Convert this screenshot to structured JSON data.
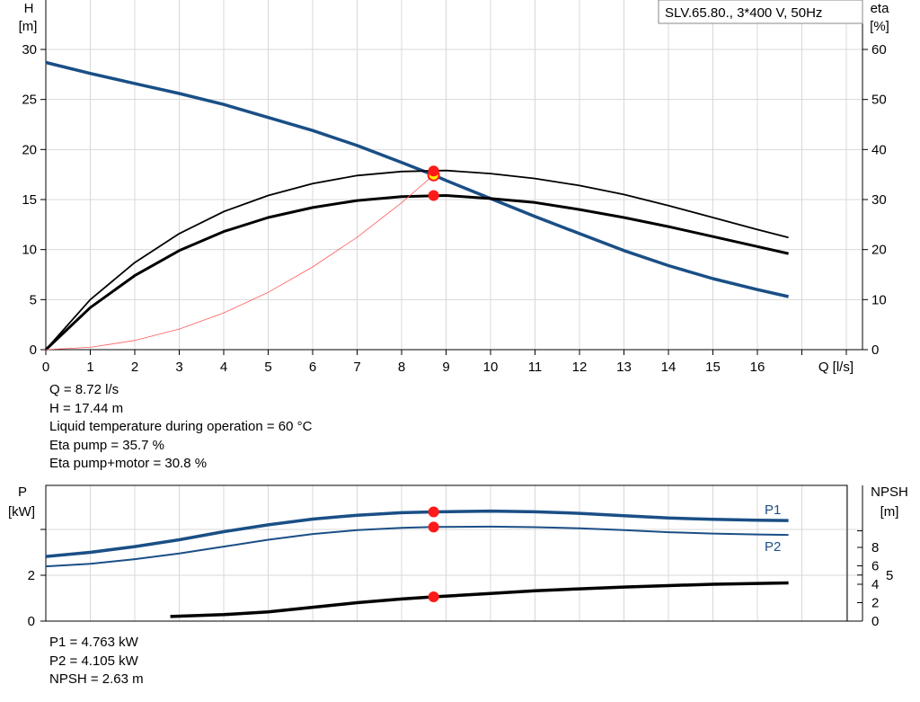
{
  "legend_text": "SLV.65.80., 3*400 V, 50Hz",
  "info_top": [
    "Q = 8.72 l/s",
    "H = 17.44 m",
    "Liquid temperature during operation = 60 °C",
    "Eta pump = 35.7 %",
    "Eta pump+motor = 30.8 %"
  ],
  "info_bottom": [
    "P1 = 4.763 kW",
    "P2 = 4.105 kW",
    "NPSH = 2.63 m"
  ],
  "colors": {
    "head": "#1a4f86",
    "power": "#1a4f86",
    "efficiency": "#000000",
    "npsh": "#000000",
    "system": "#ff5a5a",
    "point": "#ff1a1a",
    "duty_point": "#ffee00",
    "grid": "#d8d8d8"
  },
  "chart_data": [
    {
      "type": "line",
      "xlabel": "Q [l/s]",
      "ylabel_left": "H",
      "ylabel_left_unit": "[m]",
      "ylabel_right": "eta",
      "ylabel_right_unit": "[%]",
      "xlim": [
        0,
        18
      ],
      "ylim_left": [
        0,
        30
      ],
      "ylim_right": [
        0,
        60
      ],
      "grid": true,
      "x_ticks": [
        "0",
        "1",
        "2",
        "3",
        "4",
        "5",
        "6",
        "7",
        "8",
        "9",
        "10",
        "11",
        "12",
        "13",
        "14",
        "15",
        "16"
      ],
      "y_left_ticks": [
        "0",
        "5",
        "10",
        "15",
        "20",
        "25",
        "30"
      ],
      "y_right_ticks": [
        "0",
        "10",
        "20",
        "30",
        "40",
        "50",
        "60"
      ],
      "series": [
        {
          "role": "head",
          "axis": "left",
          "x": [
            0,
            1,
            2,
            3,
            4,
            5,
            6,
            7,
            8,
            8.72,
            9,
            10,
            11,
            12,
            13,
            14,
            15,
            16,
            16.7
          ],
          "y": [
            28.7,
            27.6,
            26.6,
            25.6,
            24.5,
            23.2,
            21.9,
            20.4,
            18.7,
            17.44,
            16.9,
            15.1,
            13.3,
            11.6,
            9.9,
            8.4,
            7.1,
            6.0,
            5.3
          ]
        },
        {
          "role": "eta-pump",
          "axis": "right",
          "x": [
            0,
            1,
            2,
            3,
            4,
            5,
            6,
            7,
            8,
            9,
            10,
            11,
            12,
            13,
            14,
            15,
            16,
            16.7
          ],
          "y": [
            0,
            10,
            17.4,
            23.2,
            27.6,
            30.8,
            33.2,
            34.8,
            35.6,
            35.8,
            35.2,
            34.2,
            32.8,
            31,
            28.8,
            26.4,
            24,
            22.4
          ]
        },
        {
          "role": "eta-pump-motor",
          "axis": "right",
          "x": [
            0,
            1,
            2,
            3,
            4,
            5,
            6,
            7,
            8,
            9,
            10,
            11,
            12,
            13,
            14,
            15,
            16,
            16.7
          ],
          "y": [
            0,
            8.4,
            14.8,
            19.8,
            23.6,
            26.4,
            28.4,
            29.8,
            30.6,
            30.8,
            30.2,
            29.4,
            28,
            26.4,
            24.6,
            22.6,
            20.6,
            19.2
          ]
        },
        {
          "role": "system",
          "axis": "left",
          "x": [
            0,
            1,
            2,
            3,
            4,
            5,
            6,
            7,
            8,
            8.72
          ],
          "y": [
            0,
            0.23,
            0.92,
            2.06,
            3.67,
            5.73,
            8.26,
            11.24,
            14.68,
            17.44
          ]
        }
      ],
      "points": [
        {
          "x": 8.72,
          "y": 17.44,
          "axis": "left",
          "style": "duty"
        },
        {
          "x": 8.72,
          "y": 35.7,
          "axis": "right",
          "style": "red"
        },
        {
          "x": 8.72,
          "y": 30.8,
          "axis": "right",
          "style": "red"
        }
      ]
    },
    {
      "type": "line",
      "ylabel_left": "P",
      "ylabel_left_unit": "[kW]",
      "ylabel_right": "NPSH",
      "ylabel_right_unit": "[m]",
      "xlim": [
        0,
        18
      ],
      "ylim_left": [
        0,
        5.9
      ],
      "ylim_right": [
        0,
        9.8
      ],
      "grid": true,
      "y_left_ticks": [
        "0",
        "2"
      ],
      "y_right_ticks": [
        "0",
        "2",
        "4",
        "5",
        "6",
        "8"
      ],
      "series": [
        {
          "name": "P1",
          "axis": "left",
          "x": [
            0,
            1,
            2,
            3,
            4,
            5,
            6,
            7,
            8,
            8.72,
            10,
            11,
            12,
            13,
            14,
            15,
            16,
            16.7
          ],
          "y": [
            2.82,
            3.0,
            3.25,
            3.55,
            3.9,
            4.2,
            4.45,
            4.62,
            4.73,
            4.763,
            4.8,
            4.77,
            4.7,
            4.6,
            4.5,
            4.44,
            4.4,
            4.39
          ]
        },
        {
          "name": "P2",
          "axis": "left",
          "x": [
            0,
            1,
            2,
            3,
            4,
            5,
            6,
            7,
            8,
            8.72,
            10,
            11,
            12,
            13,
            14,
            15,
            16,
            16.7
          ],
          "y": [
            2.39,
            2.5,
            2.7,
            2.95,
            3.25,
            3.55,
            3.8,
            3.97,
            4.07,
            4.105,
            4.12,
            4.1,
            4.05,
            3.97,
            3.88,
            3.82,
            3.78,
            3.76
          ]
        },
        {
          "role": "npsh",
          "axis": "right",
          "x": [
            2.8,
            4,
            5,
            6,
            7,
            8,
            8.72,
            10,
            11,
            12,
            13,
            14,
            15,
            16.7
          ],
          "y": [
            0.5,
            0.7,
            1.0,
            1.5,
            2.0,
            2.4,
            2.63,
            3.0,
            3.3,
            3.5,
            3.7,
            3.85,
            4.0,
            4.15
          ]
        }
      ],
      "points": [
        {
          "x": 8.72,
          "y": 4.763,
          "axis": "left"
        },
        {
          "x": 8.72,
          "y": 4.105,
          "axis": "left"
        },
        {
          "x": 8.72,
          "y": 2.63,
          "axis": "right"
        }
      ]
    }
  ]
}
